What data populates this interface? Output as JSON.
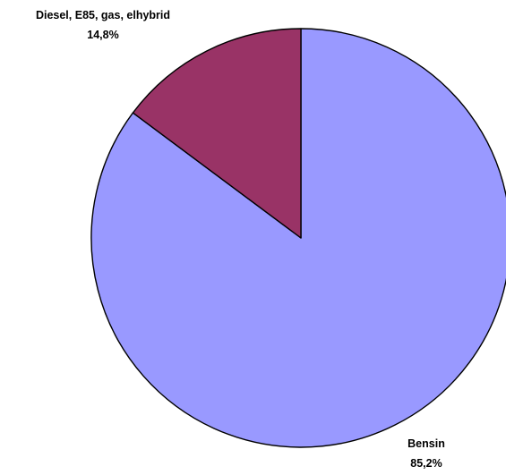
{
  "chart_data": {
    "type": "pie",
    "title": "",
    "slices": [
      {
        "label": "Bensin",
        "value": 85.2,
        "value_label": "85,2%",
        "color": "#9999FF"
      },
      {
        "label": "Diesel, E85, gas, elhybrid",
        "value": 14.8,
        "value_label": "14,8%",
        "color": "#993366"
      }
    ],
    "start_angle": "12 o'clock",
    "direction": "clockwise",
    "legend": "none"
  }
}
